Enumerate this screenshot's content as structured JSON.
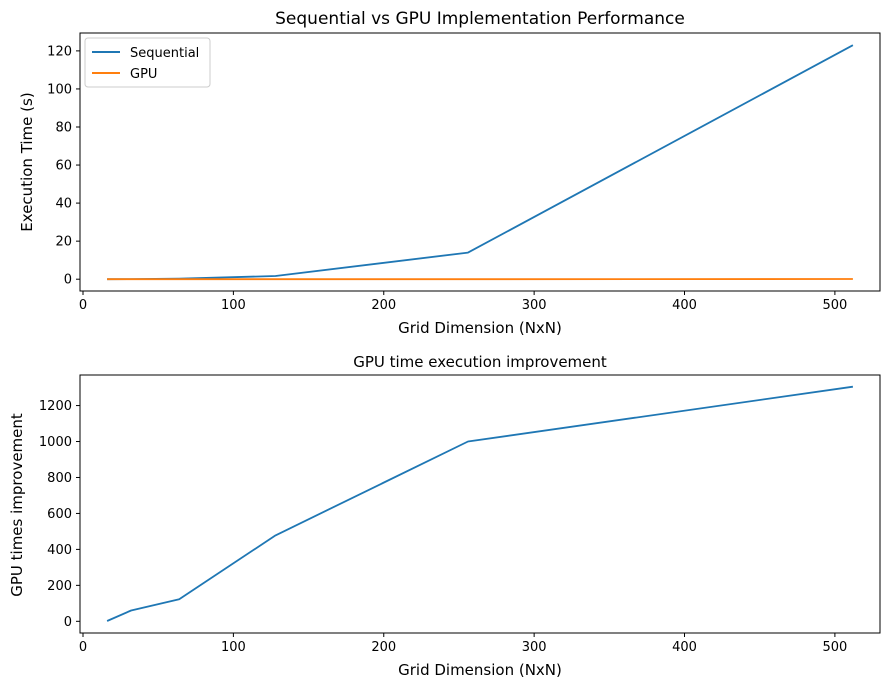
{
  "chart_data": [
    {
      "type": "line",
      "title": "Sequential vs GPU Implementation Performance",
      "xlabel": "Grid Dimension (NxN)",
      "ylabel": "Execution Time (s)",
      "xlim": [
        -2,
        530
      ],
      "ylim": [
        -6.2,
        129.4
      ],
      "xticks": [
        0,
        100,
        200,
        300,
        400,
        500
      ],
      "yticks": [
        0,
        20,
        40,
        60,
        80,
        100,
        120
      ],
      "legend_position": "top-left",
      "grid": false,
      "x": [
        16,
        32,
        64,
        128,
        256,
        512
      ],
      "series": [
        {
          "name": "Sequential",
          "color": "#1f77b4",
          "values": [
            0.01,
            0.06,
            0.25,
            1.7,
            14.0,
            123.0
          ]
        },
        {
          "name": "GPU",
          "color": "#ff7f0e",
          "values": [
            0.01,
            0.01,
            0.01,
            0.01,
            0.01,
            0.09
          ]
        }
      ]
    },
    {
      "type": "line",
      "title": "GPU time execution improvement",
      "xlabel": "Grid Dimension (NxN)",
      "ylabel": "GPU times improvement",
      "xlim": [
        -2,
        530
      ],
      "ylim": [
        -65,
        1370
      ],
      "xticks": [
        0,
        100,
        200,
        300,
        400,
        500
      ],
      "yticks": [
        0,
        200,
        400,
        600,
        800,
        1000,
        1200
      ],
      "grid": false,
      "x": [
        16,
        32,
        64,
        128,
        256,
        512
      ],
      "series": [
        {
          "color": "#1f77b4",
          "values": [
            2,
            60,
            123,
            478,
            1000,
            1305
          ]
        }
      ]
    }
  ]
}
